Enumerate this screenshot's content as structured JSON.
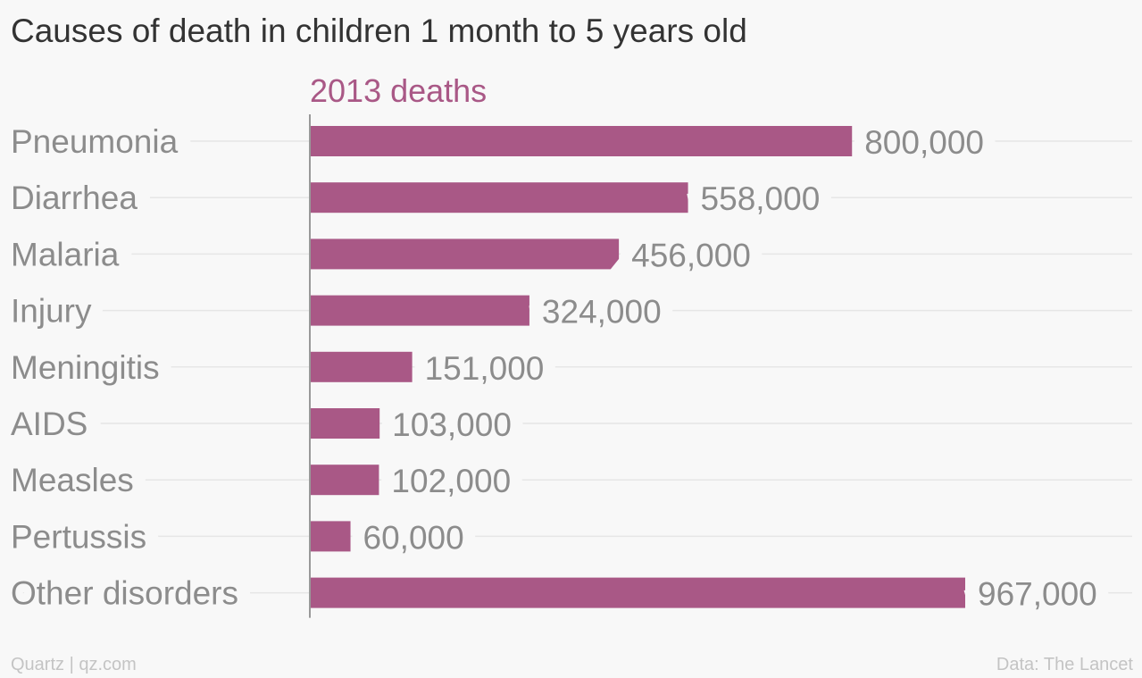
{
  "title": "Causes of death in children 1 month to 5 years old",
  "footer": {
    "credit": "Quartz | qz.com",
    "source": "Data: The Lancet"
  },
  "colors": {
    "bar": "#a95886",
    "series_label": "#a95886",
    "category_label": "#8c8c8c",
    "value_label": "#8c8c8c",
    "gridline": "#e6e6e6",
    "axis": "#999999"
  },
  "chart_data": {
    "type": "bar",
    "orientation": "horizontal",
    "series": [
      {
        "name": "2013 deaths",
        "values": [
          800000,
          558000,
          456000,
          324000,
          151000,
          103000,
          102000,
          60000,
          967000
        ],
        "labels": [
          "800,000",
          "558,000",
          "456,000",
          "324,000",
          "151,000",
          "103,000",
          "102,000",
          "60,000",
          "967,000"
        ]
      }
    ],
    "categories": [
      "Pneumonia",
      "Diarrhea",
      "Malaria",
      "Injury",
      "Meningitis",
      "AIDS",
      "Measles",
      "Pertussis",
      "Other disorders"
    ],
    "xlim": [
      0,
      967000
    ],
    "grid": true,
    "legend": "none"
  }
}
